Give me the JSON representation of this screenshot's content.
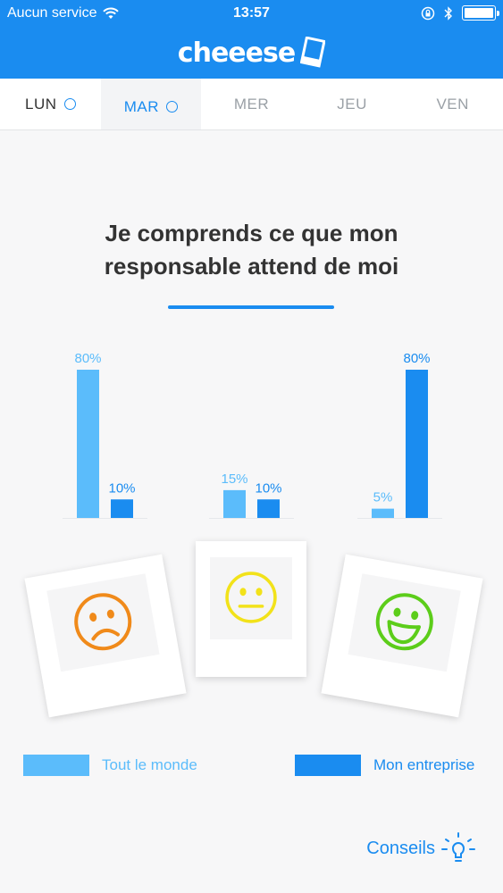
{
  "status_bar": {
    "carrier": "Aucun service",
    "time": "13:57"
  },
  "app": {
    "logo_text": "cheeese"
  },
  "tabs": [
    {
      "label": "LUN",
      "state": "done"
    },
    {
      "label": "MAR",
      "state": "active"
    },
    {
      "label": "MER",
      "state": "pending"
    },
    {
      "label": "JEU",
      "state": "pending"
    },
    {
      "label": "VEN",
      "state": "pending"
    }
  ],
  "question": {
    "line1": "Je comprends ce que mon",
    "line2": "responsable attend de moi"
  },
  "chart_data": {
    "type": "bar",
    "categories": [
      "Pas d'accord",
      "Neutre",
      "D'accord"
    ],
    "series": [
      {
        "name": "Tout le monde",
        "color": "#5bbcfb",
        "values": [
          80,
          15,
          5
        ]
      },
      {
        "name": "Mon entreprise",
        "color": "#1a8cf0",
        "values": [
          10,
          10,
          80
        ]
      }
    ],
    "value_labels": {
      "Tout le monde": [
        "80%",
        "15%",
        "5%"
      ],
      "Mon entreprise": [
        "10%",
        "10%",
        "80%"
      ]
    },
    "ylim": [
      0,
      80
    ],
    "grid": false,
    "legend_placement": "bottom"
  },
  "answers": [
    {
      "icon": "sad-face-icon",
      "color": "#f08a1a"
    },
    {
      "icon": "neutral-face-icon",
      "color": "#f2e21a"
    },
    {
      "icon": "happy-face-icon",
      "color": "#5ccd1a"
    }
  ],
  "legend": {
    "everyone": "Tout le monde",
    "company": "Mon entreprise"
  },
  "footer": {
    "tips_label": "Conseils"
  },
  "colors": {
    "brand": "#1a8cf0",
    "light_series": "#5bbcfb"
  }
}
